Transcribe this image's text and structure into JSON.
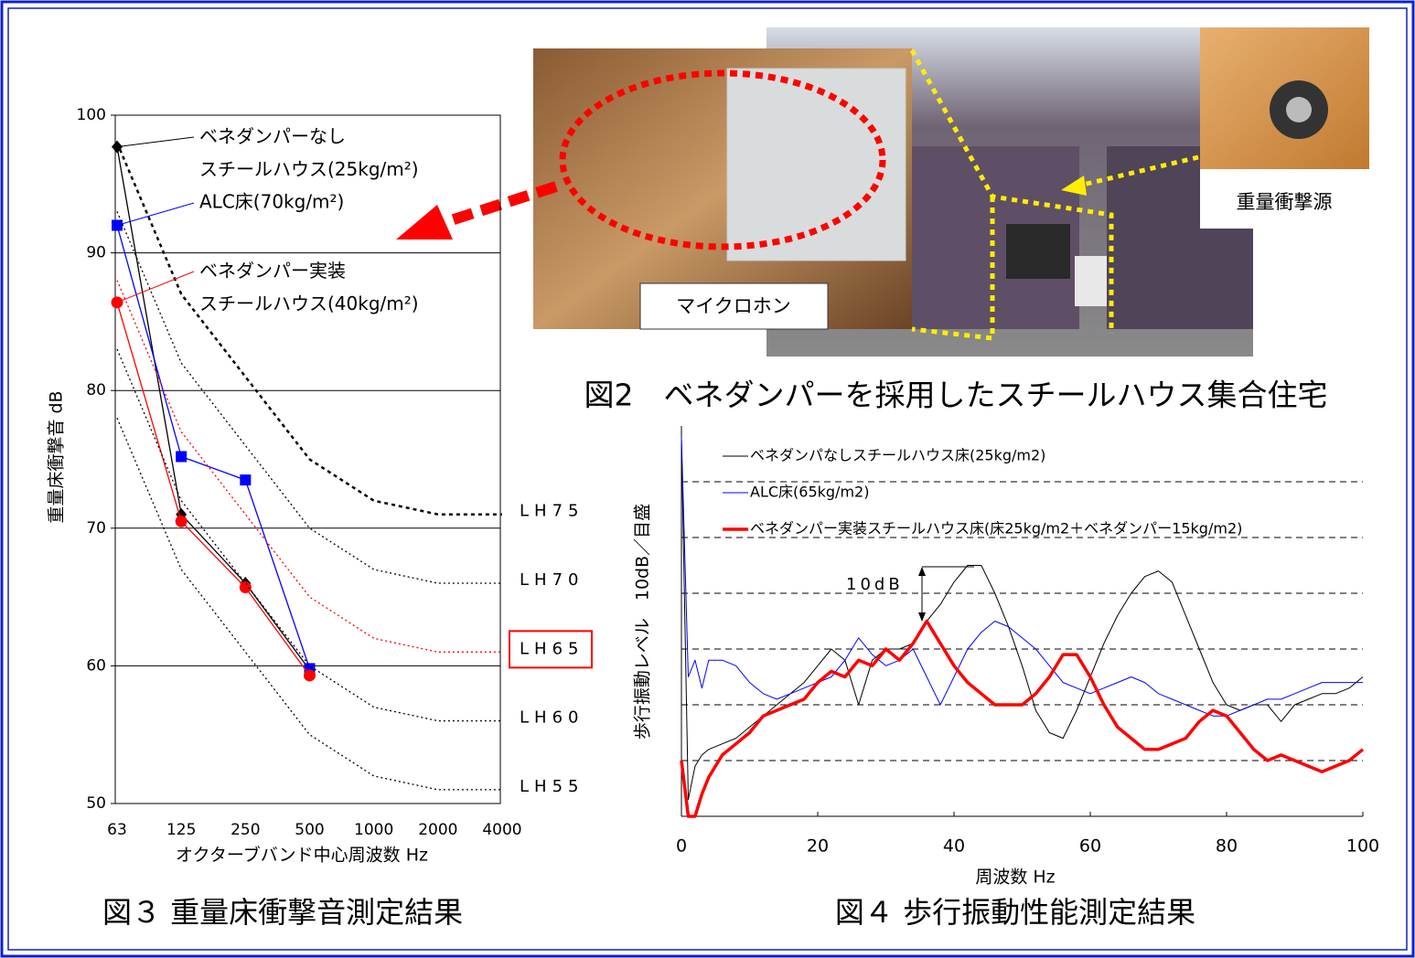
{
  "chart_data": [
    {
      "type": "line",
      "title": "図３ 重量床衝撃音測定結果",
      "xlabel": "オクターブバンド中心周波数 Hz",
      "ylabel": "重量床衝撃音 dB",
      "categories": [
        "63",
        "125",
        "250",
        "500",
        "1000",
        "2000",
        "4000"
      ],
      "ylim": [
        50,
        100
      ],
      "yticks": [
        50,
        60,
        70,
        80,
        90,
        100
      ],
      "grid": true,
      "series": [
        {
          "name": "ベネダンパーなし スチールハウス(25kg/m²)",
          "color": "#000000",
          "marker": "diamond",
          "values": [
            97.7,
            71,
            66,
            59.7,
            null,
            null,
            null
          ]
        },
        {
          "name": "ALC床(70kg/m²)",
          "color": "#0000ff",
          "marker": "square",
          "values": [
            92,
            75.2,
            73.5,
            59.8,
            null,
            null,
            null
          ]
        },
        {
          "name": "ベネダンパー実装 スチールハウス(40kg/m²)",
          "color": "#ff0000",
          "marker": "circle",
          "values": [
            86.4,
            70.5,
            65.7,
            59.3,
            null,
            null,
            null
          ]
        },
        {
          "name": "LH75",
          "color": "#000000",
          "dash": "dashed",
          "values": [
            98,
            87,
            81,
            75,
            72,
            71,
            71
          ]
        },
        {
          "name": "LH70",
          "color": "#000000",
          "dash": "dotted",
          "values": [
            93,
            82,
            76,
            70,
            67,
            66,
            66
          ]
        },
        {
          "name": "LH65",
          "color": "#ff0000",
          "dash": "dotted",
          "highlight": true,
          "values": [
            88,
            77,
            71,
            65,
            62,
            61,
            61
          ]
        },
        {
          "name": "LH60",
          "color": "#000000",
          "dash": "dotted",
          "values": [
            83,
            72,
            66,
            60,
            57,
            56,
            56
          ]
        },
        {
          "name": "LH55",
          "color": "#000000",
          "dash": "dotted",
          "values": [
            78,
            67,
            61,
            55,
            52,
            51,
            51
          ]
        }
      ]
    },
    {
      "type": "line",
      "title": "図４ 歩行振動性能測定結果",
      "xlabel": "周波数 Hz",
      "ylabel": "歩行振動レベル　10dB／目盛",
      "annotation": "10dB",
      "x": [
        0,
        1,
        2,
        3,
        4,
        6,
        8,
        10,
        12,
        14,
        16,
        18,
        20,
        22,
        24,
        26,
        28,
        30,
        32,
        34,
        36,
        38,
        40,
        42,
        44,
        46,
        48,
        50,
        52,
        54,
        56,
        58,
        60,
        62,
        64,
        66,
        68,
        70,
        72,
        74,
        76,
        78,
        80,
        82,
        84,
        86,
        88,
        90,
        92,
        94,
        96,
        98,
        100
      ],
      "xlim": [
        0,
        100
      ],
      "xticks": [
        0,
        20,
        40,
        60,
        80,
        100
      ],
      "ylim": [
        0,
        70
      ],
      "yticks": [
        10,
        20,
        30,
        40,
        50,
        60
      ],
      "ytick_labels": false,
      "grid": true,
      "grid_style": "dashed",
      "series": [
        {
          "name": "ベネダンパなしスチールハウス床(25kg/m2)",
          "color": "#000000",
          "width": 1,
          "values": [
            68,
            3,
            9,
            11,
            12,
            13,
            14,
            16,
            18,
            20,
            22,
            24,
            27,
            30,
            28,
            20,
            28,
            30,
            30,
            31,
            35,
            38,
            42,
            45,
            45,
            40,
            34,
            27,
            19,
            15,
            14,
            19,
            25,
            31,
            36,
            40,
            43,
            44,
            42,
            36,
            30,
            24,
            20,
            19,
            20,
            20,
            17,
            20,
            21,
            22,
            22,
            23,
            25
          ]
        },
        {
          "name": "ALC床(65kg/m2)",
          "color": "#0000ff",
          "width": 1,
          "values": [
            68,
            25,
            28,
            23,
            28,
            28,
            27,
            24,
            22,
            21,
            22,
            23,
            24,
            25,
            28,
            32,
            29,
            27,
            28,
            30,
            25,
            20,
            25,
            30,
            33,
            35,
            34,
            32,
            30,
            27,
            24,
            23,
            22,
            23,
            24,
            25,
            24,
            22,
            21,
            20,
            19,
            18,
            18,
            19,
            20,
            21,
            21,
            22,
            23,
            24,
            24,
            24,
            24
          ]
        },
        {
          "name": "ベネダンパー実装スチールハウス床(床25kg/m2＋ベネダンパー15kg/m2)",
          "color": "#ff0000",
          "width": 3.5,
          "values": [
            10,
            0,
            0,
            4,
            7,
            11,
            13,
            15,
            18,
            19,
            20,
            21,
            24,
            26,
            25,
            28,
            27,
            30,
            28,
            31,
            35,
            31,
            27,
            24,
            22,
            20,
            20,
            20,
            22,
            25,
            29,
            29,
            25,
            20,
            16,
            14,
            12,
            12,
            13,
            14,
            17,
            19,
            18,
            15,
            12,
            10,
            11,
            10,
            9,
            8,
            9,
            10,
            12
          ]
        }
      ]
    }
  ],
  "photo": {
    "caption": "図2　ベネダンパーを採用したスチールハウス集合住宅",
    "labels": [
      "マイクロホン",
      "重量衝撃源"
    ]
  }
}
